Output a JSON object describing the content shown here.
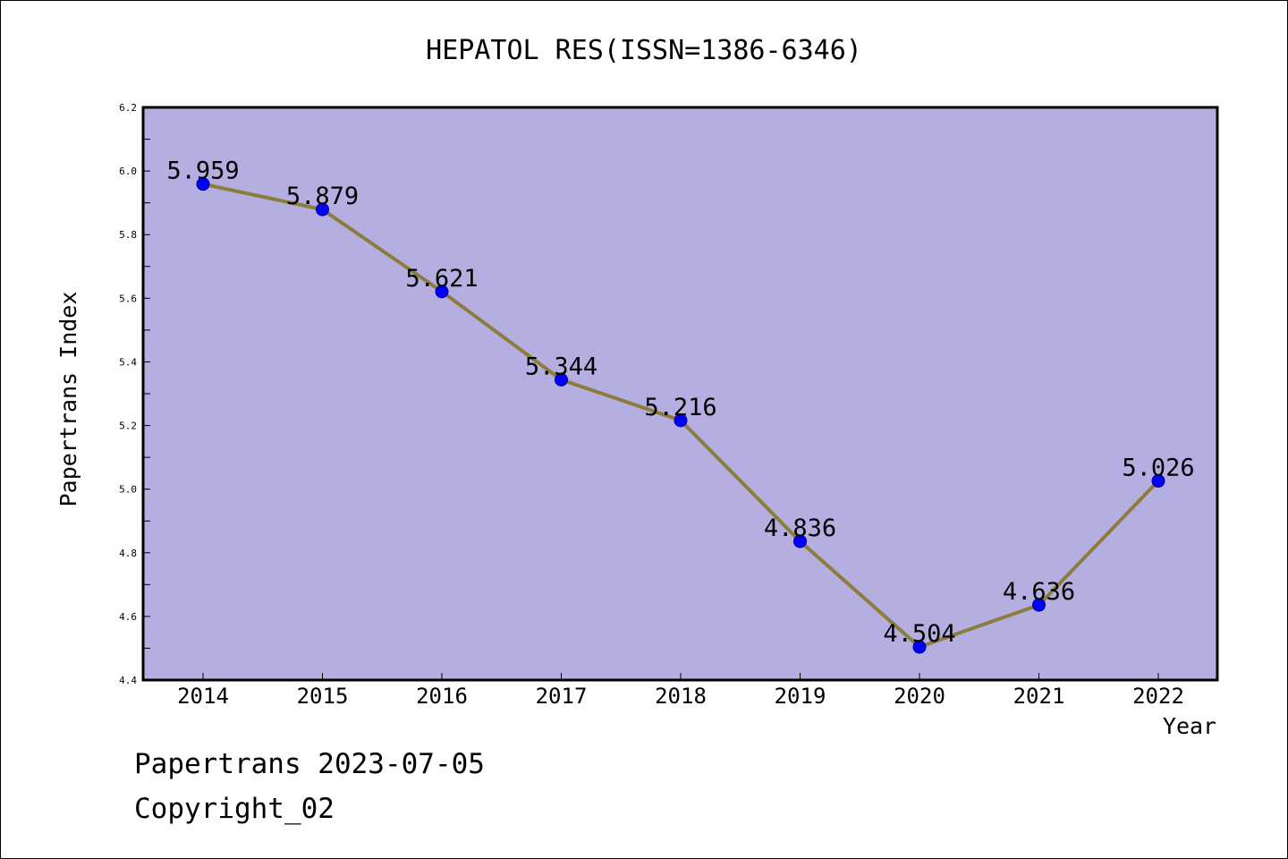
{
  "chart_data": {
    "type": "line",
    "title": "HEPATOL RES(ISSN=1386-6346)",
    "xlabel": "Year",
    "ylabel": "Papertrans Index",
    "categories": [
      "2014",
      "2015",
      "2016",
      "2017",
      "2018",
      "2019",
      "2020",
      "2021",
      "2022"
    ],
    "series": [
      {
        "values": [
          5.959,
          5.879,
          5.621,
          5.344,
          5.216,
          4.836,
          4.504,
          4.636,
          5.026
        ],
        "data_labels": [
          "5.959",
          "5.879",
          "5.621",
          "5.344",
          "5.216",
          "4.836",
          "4.504",
          "4.636",
          "5.026"
        ]
      }
    ],
    "ylim": [
      4.4,
      6.2
    ],
    "yticks": [
      "4.4",
      "4.6",
      "4.8",
      "5.0",
      "5.2",
      "5.4",
      "5.6",
      "5.8",
      "6.0",
      "6.2"
    ],
    "grid": false,
    "colors": {
      "plot_background": "#b4aee1",
      "line": "#8c7d3c",
      "marker": "#0000ff"
    }
  },
  "footer": {
    "date_line": "Papertrans 2023-07-05",
    "copyright": "Copyright_02"
  }
}
